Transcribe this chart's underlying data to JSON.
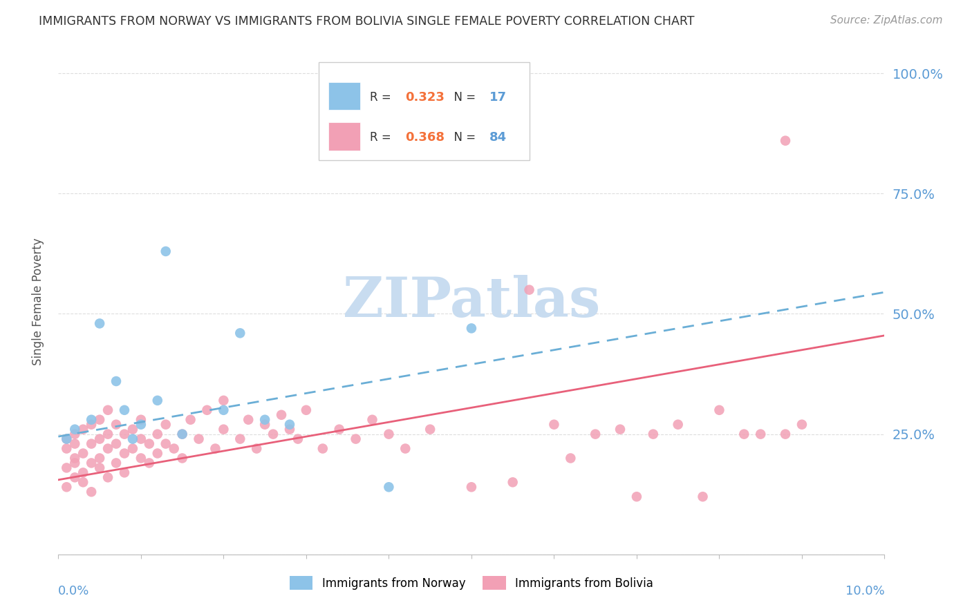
{
  "title": "IMMIGRANTS FROM NORWAY VS IMMIGRANTS FROM BOLIVIA SINGLE FEMALE POVERTY CORRELATION CHART",
  "source": "Source: ZipAtlas.com",
  "ylabel": "Single Female Poverty",
  "norway_R": 0.323,
  "norway_N": 17,
  "bolivia_R": 0.368,
  "bolivia_N": 84,
  "norway_color": "#8DC3E8",
  "bolivia_color": "#F2A0B5",
  "norway_line_color": "#6AAED6",
  "bolivia_line_color": "#E8607A",
  "right_axis_color": "#5B9BD5",
  "source_color": "#999999",
  "legend_R_color": "#F4713A",
  "background_color": "#FFFFFF",
  "grid_color": "#DDDDDD",
  "norway_x": [
    0.001,
    0.002,
    0.004,
    0.005,
    0.007,
    0.008,
    0.009,
    0.01,
    0.012,
    0.013,
    0.015,
    0.02,
    0.022,
    0.025,
    0.028,
    0.04,
    0.05
  ],
  "norway_y": [
    0.24,
    0.26,
    0.28,
    0.48,
    0.36,
    0.3,
    0.24,
    0.27,
    0.32,
    0.63,
    0.25,
    0.3,
    0.46,
    0.28,
    0.27,
    0.14,
    0.47
  ],
  "bolivia_x": [
    0.001,
    0.001,
    0.001,
    0.001,
    0.002,
    0.002,
    0.002,
    0.002,
    0.002,
    0.003,
    0.003,
    0.003,
    0.003,
    0.004,
    0.004,
    0.004,
    0.004,
    0.005,
    0.005,
    0.005,
    0.005,
    0.006,
    0.006,
    0.006,
    0.006,
    0.007,
    0.007,
    0.007,
    0.008,
    0.008,
    0.008,
    0.009,
    0.009,
    0.01,
    0.01,
    0.01,
    0.011,
    0.011,
    0.012,
    0.012,
    0.013,
    0.013,
    0.014,
    0.015,
    0.015,
    0.016,
    0.017,
    0.018,
    0.019,
    0.02,
    0.02,
    0.022,
    0.023,
    0.024,
    0.025,
    0.026,
    0.027,
    0.028,
    0.029,
    0.03,
    0.032,
    0.034,
    0.036,
    0.038,
    0.04,
    0.042,
    0.045,
    0.05,
    0.055,
    0.06,
    0.065,
    0.07,
    0.075,
    0.08,
    0.085,
    0.09,
    0.057,
    0.062,
    0.068,
    0.072,
    0.078,
    0.083,
    0.088,
    0.088
  ],
  "bolivia_y": [
    0.22,
    0.18,
    0.14,
    0.24,
    0.2,
    0.16,
    0.23,
    0.19,
    0.25,
    0.17,
    0.21,
    0.15,
    0.26,
    0.19,
    0.23,
    0.27,
    0.13,
    0.2,
    0.24,
    0.18,
    0.28,
    0.22,
    0.16,
    0.25,
    0.3,
    0.19,
    0.23,
    0.27,
    0.21,
    0.25,
    0.17,
    0.22,
    0.26,
    0.2,
    0.24,
    0.28,
    0.23,
    0.19,
    0.25,
    0.21,
    0.27,
    0.23,
    0.22,
    0.25,
    0.2,
    0.28,
    0.24,
    0.3,
    0.22,
    0.26,
    0.32,
    0.24,
    0.28,
    0.22,
    0.27,
    0.25,
    0.29,
    0.26,
    0.24,
    0.3,
    0.22,
    0.26,
    0.24,
    0.28,
    0.25,
    0.22,
    0.26,
    0.14,
    0.15,
    0.27,
    0.25,
    0.12,
    0.27,
    0.3,
    0.25,
    0.27,
    0.55,
    0.2,
    0.26,
    0.25,
    0.12,
    0.25,
    0.25,
    0.86
  ],
  "norway_trend_x": [
    0.0,
    0.1
  ],
  "norway_trend_y": [
    0.245,
    0.545
  ],
  "bolivia_trend_x": [
    0.0,
    0.1
  ],
  "bolivia_trend_y": [
    0.155,
    0.455
  ],
  "xmin": 0.0,
  "xmax": 0.1,
  "ymin": 0.0,
  "ymax": 1.05,
  "yticks": [
    0.0,
    0.25,
    0.5,
    0.75,
    1.0
  ],
  "ytick_labels": [
    "",
    "25.0%",
    "50.0%",
    "75.0%",
    "100.0%"
  ],
  "xticks": [
    0.0,
    0.01,
    0.02,
    0.03,
    0.04,
    0.05,
    0.06,
    0.07,
    0.08,
    0.09,
    0.1
  ],
  "watermark_text": "ZIPatlas",
  "watermark_color": "#C8DCF0"
}
